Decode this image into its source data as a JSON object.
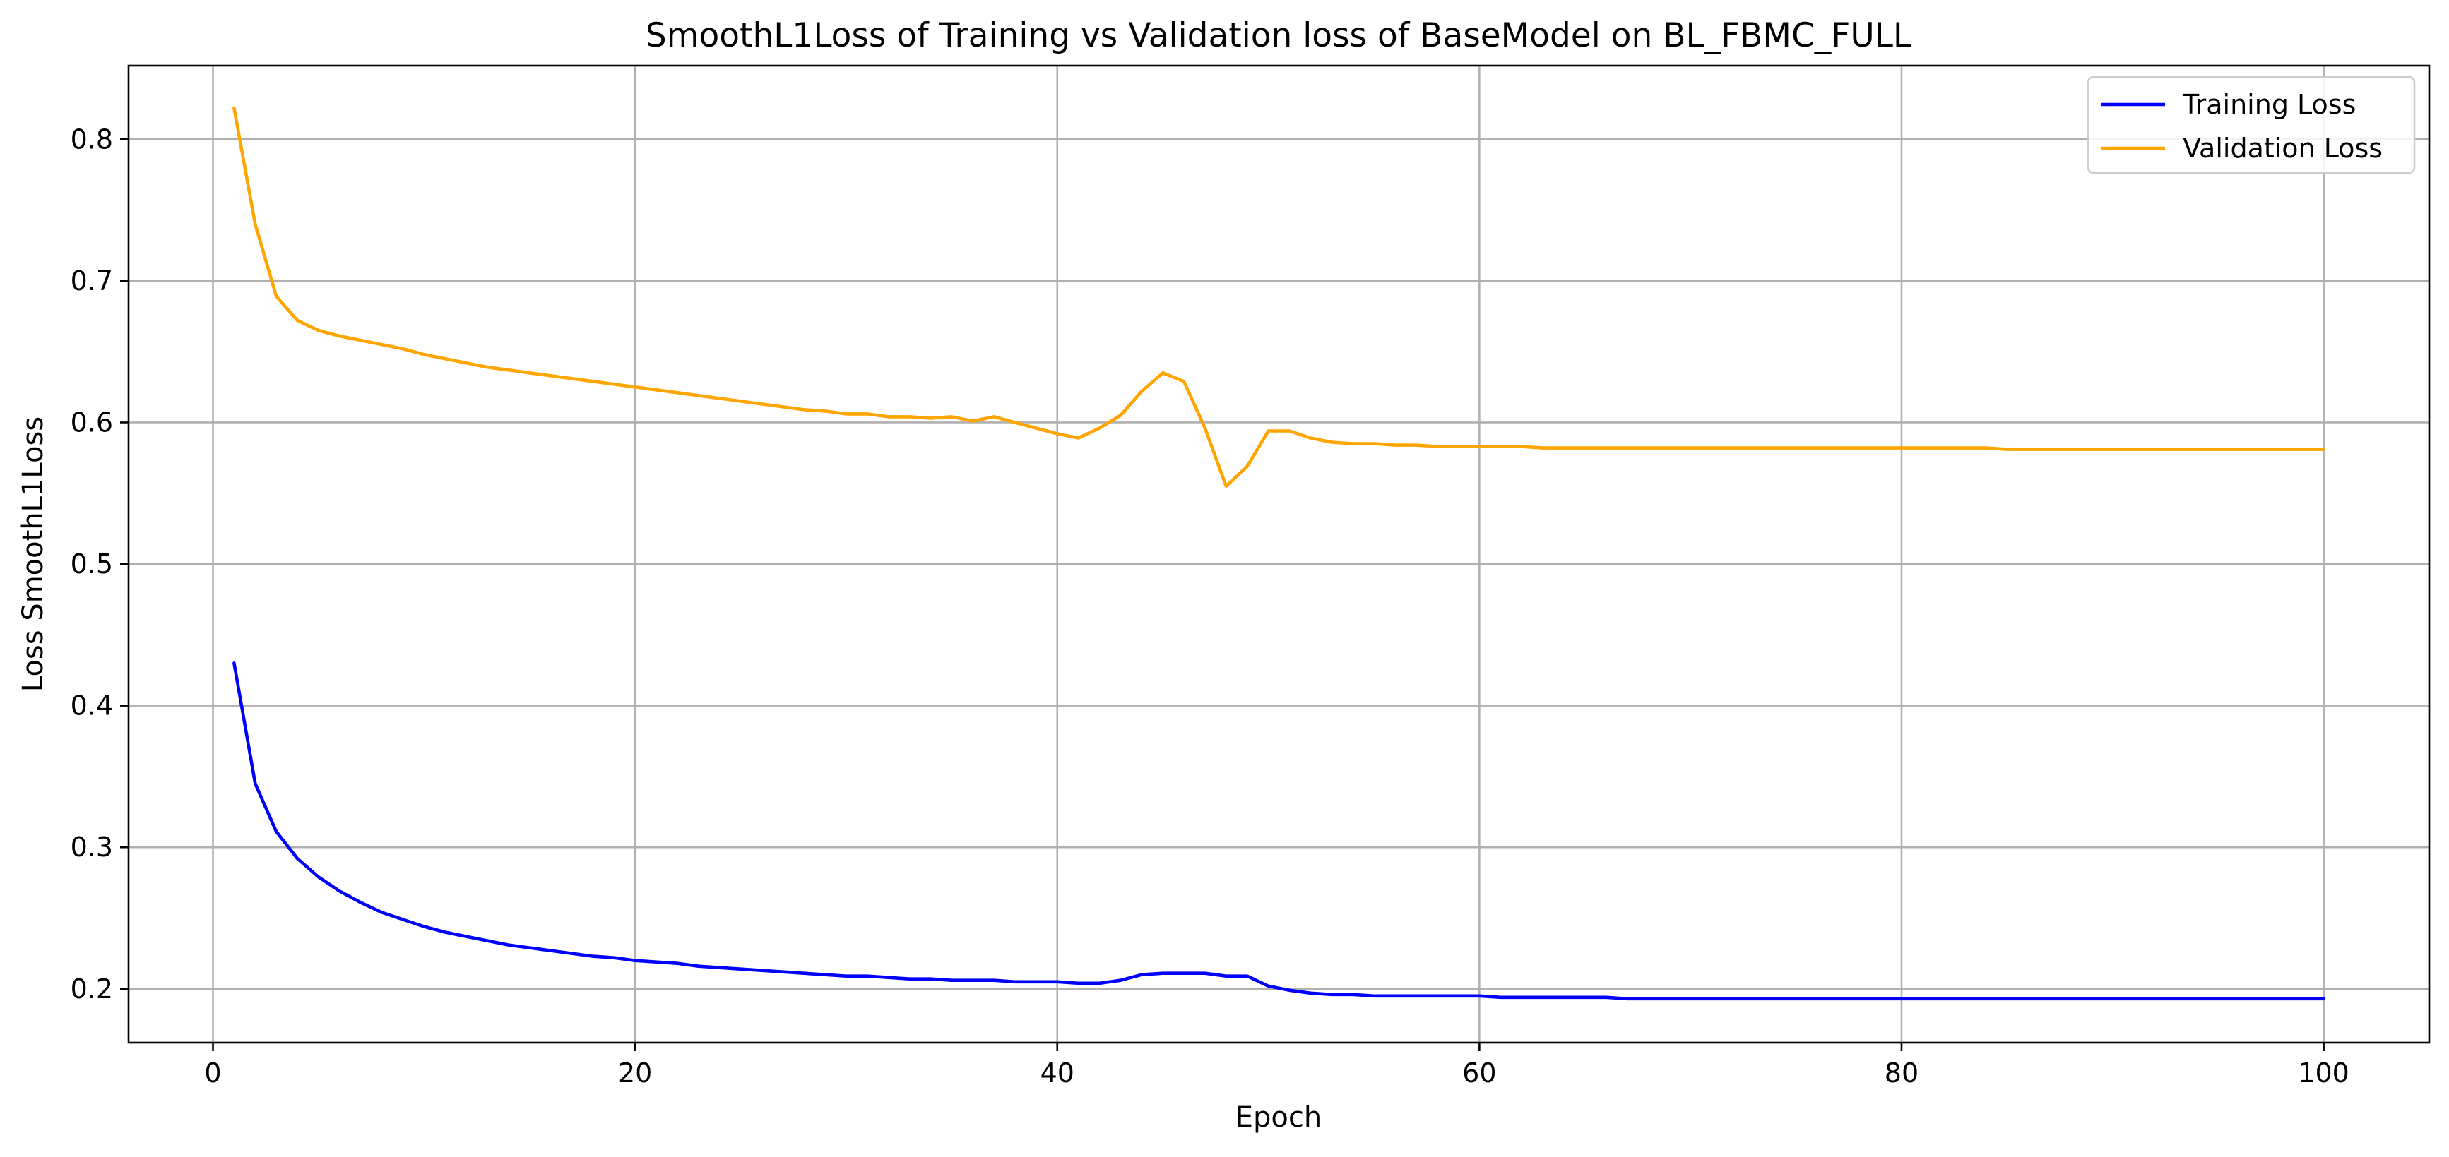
{
  "chart_data": {
    "type": "line",
    "title": "SmoothL1Loss of Training vs Validation loss of BaseModel on BL_FBMC_FULL",
    "xlabel": "Epoch",
    "ylabel": "Loss SmoothL1Loss",
    "xlim": [
      -4,
      105
    ],
    "ylim": [
      0.162,
      0.852
    ],
    "x_ticks": [
      0,
      20,
      40,
      60,
      80,
      100
    ],
    "x_tick_labels": [
      "0",
      "20",
      "40",
      "60",
      "80",
      "100"
    ],
    "y_ticks": [
      0.2,
      0.3,
      0.4,
      0.5,
      0.6,
      0.7,
      0.8
    ],
    "y_tick_labels": [
      "0.2",
      "0.3",
      "0.4",
      "0.5",
      "0.6",
      "0.7",
      "0.8"
    ],
    "grid": true,
    "legend_position": "top-right",
    "x": [
      1,
      2,
      3,
      4,
      5,
      6,
      7,
      8,
      9,
      10,
      11,
      12,
      13,
      14,
      15,
      16,
      17,
      18,
      19,
      20,
      21,
      22,
      23,
      24,
      25,
      26,
      27,
      28,
      29,
      30,
      31,
      32,
      33,
      34,
      35,
      36,
      37,
      38,
      39,
      40,
      41,
      42,
      43,
      44,
      45,
      46,
      47,
      48,
      49,
      50,
      51,
      52,
      53,
      54,
      55,
      56,
      57,
      58,
      59,
      60,
      61,
      62,
      63,
      64,
      65,
      66,
      67,
      68,
      69,
      70,
      71,
      72,
      73,
      74,
      75,
      76,
      77,
      78,
      79,
      80,
      81,
      82,
      83,
      84,
      85,
      86,
      87,
      88,
      89,
      90,
      91,
      92,
      93,
      94,
      95,
      96,
      97,
      98,
      99,
      100
    ],
    "series": [
      {
        "name": "Training Loss",
        "color": "#0000ff",
        "values": [
          0.43,
          0.345,
          0.311,
          0.292,
          0.279,
          0.269,
          0.261,
          0.254,
          0.249,
          0.244,
          0.24,
          0.237,
          0.234,
          0.231,
          0.229,
          0.227,
          0.225,
          0.223,
          0.222,
          0.22,
          0.219,
          0.218,
          0.216,
          0.215,
          0.214,
          0.213,
          0.212,
          0.211,
          0.21,
          0.209,
          0.209,
          0.208,
          0.207,
          0.207,
          0.206,
          0.206,
          0.206,
          0.205,
          0.205,
          0.205,
          0.204,
          0.204,
          0.206,
          0.21,
          0.211,
          0.211,
          0.211,
          0.209,
          0.209,
          0.202,
          0.199,
          0.197,
          0.196,
          0.196,
          0.195,
          0.195,
          0.195,
          0.195,
          0.195,
          0.195,
          0.194,
          0.194,
          0.194,
          0.194,
          0.194,
          0.194,
          0.193,
          0.193,
          0.193,
          0.193,
          0.193,
          0.193,
          0.193,
          0.193,
          0.193,
          0.193,
          0.193,
          0.193,
          0.193,
          0.193,
          0.193,
          0.193,
          0.193,
          0.193,
          0.193,
          0.193,
          0.193,
          0.193,
          0.193,
          0.193,
          0.193,
          0.193,
          0.193,
          0.193,
          0.193,
          0.193,
          0.193,
          0.193,
          0.193,
          0.193
        ]
      },
      {
        "name": "Validation Loss",
        "color": "#ffa500",
        "values": [
          0.822,
          0.74,
          0.689,
          0.672,
          0.665,
          0.661,
          0.658,
          0.655,
          0.652,
          0.648,
          0.645,
          0.642,
          0.639,
          0.637,
          0.635,
          0.633,
          0.631,
          0.629,
          0.627,
          0.625,
          0.623,
          0.621,
          0.619,
          0.617,
          0.615,
          0.613,
          0.611,
          0.609,
          0.608,
          0.606,
          0.606,
          0.604,
          0.604,
          0.603,
          0.604,
          0.601,
          0.604,
          0.6,
          0.596,
          0.592,
          0.589,
          0.596,
          0.605,
          0.622,
          0.635,
          0.629,
          0.596,
          0.555,
          0.569,
          0.594,
          0.594,
          0.589,
          0.586,
          0.585,
          0.585,
          0.584,
          0.584,
          0.583,
          0.583,
          0.583,
          0.583,
          0.583,
          0.582,
          0.582,
          0.582,
          0.582,
          0.582,
          0.582,
          0.582,
          0.582,
          0.582,
          0.582,
          0.582,
          0.582,
          0.582,
          0.582,
          0.582,
          0.582,
          0.582,
          0.582,
          0.582,
          0.582,
          0.582,
          0.582,
          0.581,
          0.581,
          0.581,
          0.581,
          0.581,
          0.581,
          0.581,
          0.581,
          0.581,
          0.581,
          0.581,
          0.581,
          0.581,
          0.581,
          0.581,
          0.581
        ]
      }
    ]
  }
}
